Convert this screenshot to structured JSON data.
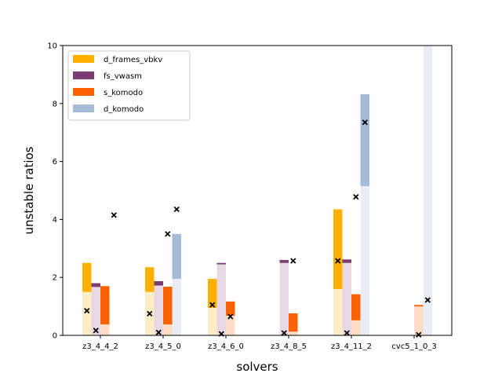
{
  "chart_data": {
    "type": "bar",
    "xlabel": "solvers",
    "ylabel": "unstable ratios",
    "ylim": [
      0,
      10
    ],
    "yticks": [
      0,
      2,
      4,
      6,
      8,
      10
    ],
    "categories": [
      "z3_4_4_2",
      "z3_4_5_0",
      "z3_4_6_0",
      "z3_4_8_5",
      "z3_4_11_2",
      "cvc5_1_0_3"
    ],
    "legend_position": "top-left",
    "series": [
      {
        "name": "d_frames_vbkv",
        "color": "#FFB000",
        "light_color": "#FCEDC7",
        "base": [
          1.5,
          1.5,
          0.95,
          0,
          1.6,
          0
        ],
        "top": [
          2.5,
          2.35,
          1.95,
          0,
          4.35,
          0
        ]
      },
      {
        "name": "fs_vwasm",
        "color": "#7D3C73",
        "light_color": "#E8D8E4",
        "base": [
          1.67,
          1.72,
          2.45,
          2.5,
          2.5,
          0
        ],
        "top": [
          1.8,
          1.87,
          2.5,
          2.6,
          2.62,
          0
        ]
      },
      {
        "name": "s_komodo",
        "color": "#FE6100",
        "light_color": "#FFDCC5",
        "base": [
          0.38,
          0.38,
          0.68,
          0.13,
          0.52,
          1.0
        ],
        "top": [
          1.7,
          1.68,
          1.17,
          0.76,
          1.42,
          1.05
        ]
      },
      {
        "name": "d_komodo",
        "color": "#A5BBD8",
        "light_color": "#E9ECF5",
        "base": [
          0,
          1.95,
          0,
          0,
          5.15,
          10
        ],
        "top": [
          0,
          3.5,
          0,
          0,
          8.32,
          10
        ]
      }
    ],
    "markers": [
      {
        "category": "z3_4_4_2",
        "offset": -1.5,
        "value": 0.85
      },
      {
        "category": "z3_4_4_2",
        "offset": -0.5,
        "value": 0.17
      },
      {
        "category": "z3_4_4_2",
        "offset": 1.5,
        "value": 4.15
      },
      {
        "category": "z3_4_5_0",
        "offset": -1.5,
        "value": 0.75
      },
      {
        "category": "z3_4_5_0",
        "offset": -0.5,
        "value": 0.1
      },
      {
        "category": "z3_4_5_0",
        "offset": 0.5,
        "value": 3.5
      },
      {
        "category": "z3_4_5_0",
        "offset": 1.5,
        "value": 4.35
      },
      {
        "category": "z3_4_6_0",
        "offset": -1.5,
        "value": 1.05
      },
      {
        "category": "z3_4_6_0",
        "offset": -0.5,
        "value": 0.05
      },
      {
        "category": "z3_4_6_0",
        "offset": 0.5,
        "value": 0.65
      },
      {
        "category": "z3_4_8_5",
        "offset": -0.5,
        "value": 0.08
      },
      {
        "category": "z3_4_8_5",
        "offset": 0.5,
        "value": 2.57
      },
      {
        "category": "z3_4_11_2",
        "offset": -1.5,
        "value": 2.57
      },
      {
        "category": "z3_4_11_2",
        "offset": -0.5,
        "value": 0.08
      },
      {
        "category": "z3_4_11_2",
        "offset": 0.5,
        "value": 4.78
      },
      {
        "category": "z3_4_11_2",
        "offset": 1.5,
        "value": 7.35
      },
      {
        "category": "cvc5_1_0_3",
        "offset": 0.5,
        "value": 0.02
      },
      {
        "category": "cvc5_1_0_3",
        "offset": 1.5,
        "value": 1.22
      }
    ]
  }
}
